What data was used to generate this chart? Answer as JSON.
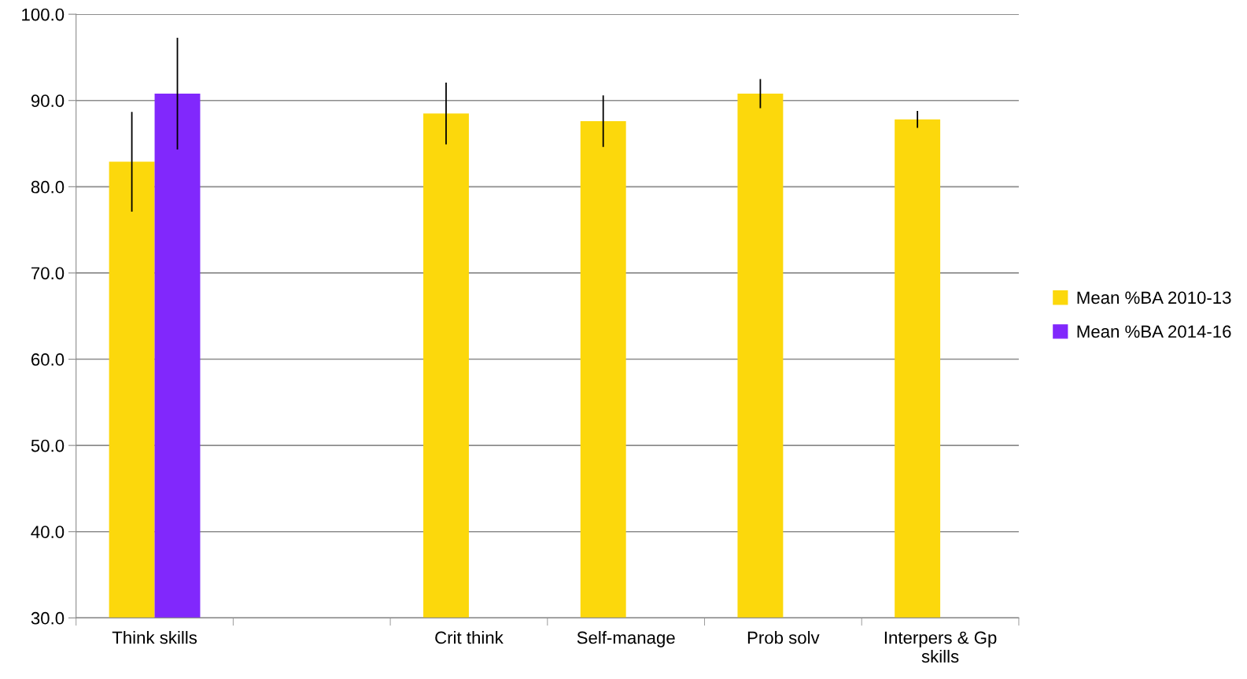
{
  "chart_data": {
    "type": "bar",
    "categories": [
      "Think skills",
      null,
      "Crit think",
      "Self-manage",
      "Prob solv",
      "Interpers & Gp\nskills"
    ],
    "series": [
      {
        "name": "Mean %BA 2010-13",
        "color": "#fcd80c",
        "values": [
          82.9,
          30.0,
          88.5,
          87.6,
          90.8,
          87.8
        ],
        "errors": [
          5.7,
          null,
          3.5,
          2.9,
          1.6,
          0.9
        ]
      },
      {
        "name": "Mean %BA 2014-16",
        "color": "#8128fc",
        "values": [
          90.8,
          null,
          null,
          null,
          null,
          null
        ],
        "errors": [
          6.4,
          null,
          null,
          null,
          null,
          null
        ]
      }
    ],
    "ylim": [
      30,
      100
    ],
    "yticks": [
      {
        "value": 30,
        "label": "30.0"
      },
      {
        "value": 40,
        "label": "40.0"
      },
      {
        "value": 50,
        "label": "50.0"
      },
      {
        "value": 60,
        "label": "60.0"
      },
      {
        "value": 70,
        "label": "70.0"
      },
      {
        "value": 80,
        "label": "80.0"
      },
      {
        "value": 90,
        "label": "90.0"
      },
      {
        "value": 100,
        "label": "100.0"
      }
    ],
    "grid": "y",
    "legend": "right"
  }
}
